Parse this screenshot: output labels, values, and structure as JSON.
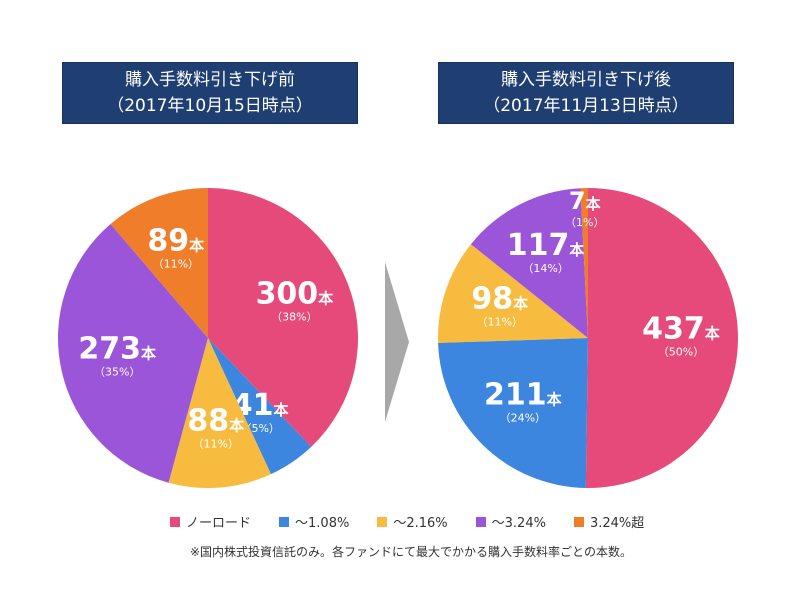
{
  "chart_data": [
    {
      "type": "pie",
      "title_line1": "購入手数料引き下げ前",
      "title_line2": "（2017年10月15日時点）",
      "slices": [
        {
          "category": "ノーロード",
          "value": 300,
          "label": "300",
          "unit": "本",
          "percent": "（38%）",
          "color": "#e54a7a"
        },
        {
          "category": "～1.08%",
          "value": 41,
          "label": "41",
          "unit": "本",
          "percent": "（5%）",
          "color": "#3c86e0"
        },
        {
          "category": "～2.16%",
          "value": 88,
          "label": "88",
          "unit": "本",
          "percent": "（11%）",
          "color": "#f6bb3f"
        },
        {
          "category": "～3.24%",
          "value": 273,
          "label": "273",
          "unit": "本",
          "percent": "（35%）",
          "color": "#9b55d8"
        },
        {
          "category": "3.24%超",
          "value": 89,
          "label": "89",
          "unit": "本",
          "percent": "（11%）",
          "color": "#f07d2a"
        }
      ]
    },
    {
      "type": "pie",
      "title_line1": "購入手数料引き下げ後",
      "title_line2": "（2017年11月13日時点）",
      "slices": [
        {
          "category": "ノーロード",
          "value": 437,
          "label": "437",
          "unit": "本",
          "percent": "（50%）",
          "color": "#e54a7a"
        },
        {
          "category": "～1.08%",
          "value": 211,
          "label": "211",
          "unit": "本",
          "percent": "（24%）",
          "color": "#3c86e0"
        },
        {
          "category": "～2.16%",
          "value": 98,
          "label": "98",
          "unit": "本",
          "percent": "（11%）",
          "color": "#f6bb3f"
        },
        {
          "category": "～3.24%",
          "value": 117,
          "label": "117",
          "unit": "本",
          "percent": "（14%）",
          "color": "#9b55d8"
        },
        {
          "category": "3.24%超",
          "value": 7,
          "label": "7",
          "unit": "本",
          "percent": "（1%）",
          "color": "#f07d2a"
        }
      ]
    }
  ],
  "legend": [
    {
      "label": "ノーロード",
      "color": "#e54a7a"
    },
    {
      "label": "～1.08%",
      "color": "#3c86e0"
    },
    {
      "label": "～2.16%",
      "color": "#f6bb3f"
    },
    {
      "label": "～3.24%",
      "color": "#9b55d8"
    },
    {
      "label": "3.24%超",
      "color": "#f07d2a"
    }
  ],
  "footnote": "※国内株式投資信託のみ。各ファンドにて最大でかかる購入手数料率ごとの本数。",
  "arrow_color": "#a8a8a8",
  "header_color": "#1f3f73"
}
